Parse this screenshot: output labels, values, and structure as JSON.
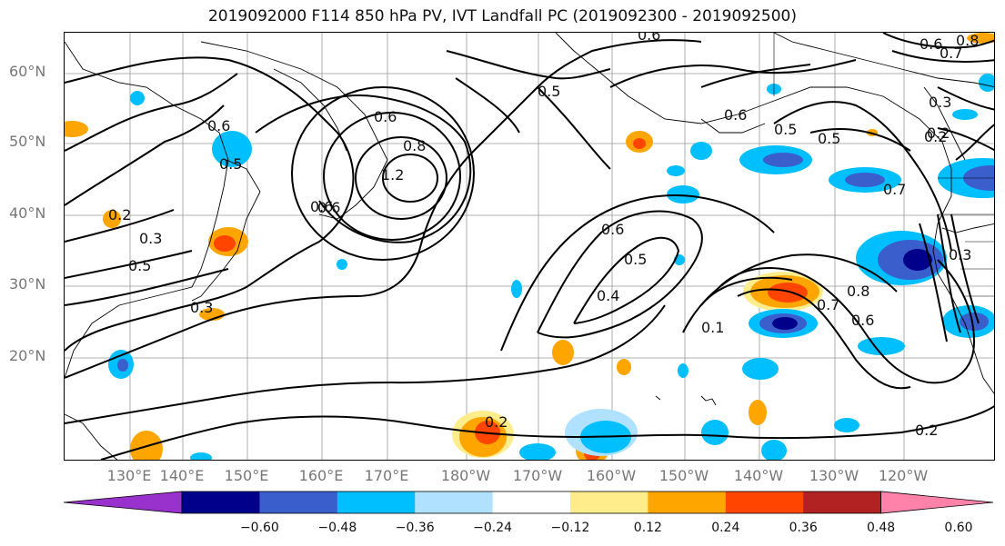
{
  "title": "2019092000 F114 850 hPa PV, IVT Landfall PC (2019092300 - 2019092500)",
  "lat_labels": [
    "60°N",
    "50°N",
    "40°N",
    "30°N",
    "20°N"
  ],
  "lon_labels": [
    "130°E",
    "140°E",
    "150°E",
    "160°E",
    "170°E",
    "180°W",
    "170°W",
    "160°W",
    "150°W",
    "140°W",
    "130°W",
    "120°W"
  ],
  "colorbar": {
    "ticks": [
      "−0.60",
      "−0.48",
      "−0.36",
      "−0.24",
      "−0.12",
      "0.12",
      "0.24",
      "0.36",
      "0.48",
      "0.60"
    ],
    "colors": [
      "#9932cc",
      "#00008b",
      "#3a5fcd",
      "#00bfff",
      "#b0e2ff",
      "#ffffff",
      "#ffec8b",
      "#ffa500",
      "#ff4500",
      "#b22222",
      "#ff82ab"
    ]
  },
  "contour_labels": [
    "0.6",
    "0.6",
    "0.7",
    "0.8",
    "0.5",
    "0.6",
    "0.5",
    "0.3",
    "0.2",
    "0.6",
    "0.5",
    "0.6",
    "0.8",
    "1.2",
    "0.6",
    "0.2",
    "0.3",
    "0.5",
    "0.3",
    "0.6",
    "0.5",
    "0.4",
    "0.7",
    "0.8",
    "0.6",
    "0.7",
    "0.3",
    "0.2",
    "0.2",
    "0.1",
    "0.2",
    "0.5",
    "0.6"
  ]
}
